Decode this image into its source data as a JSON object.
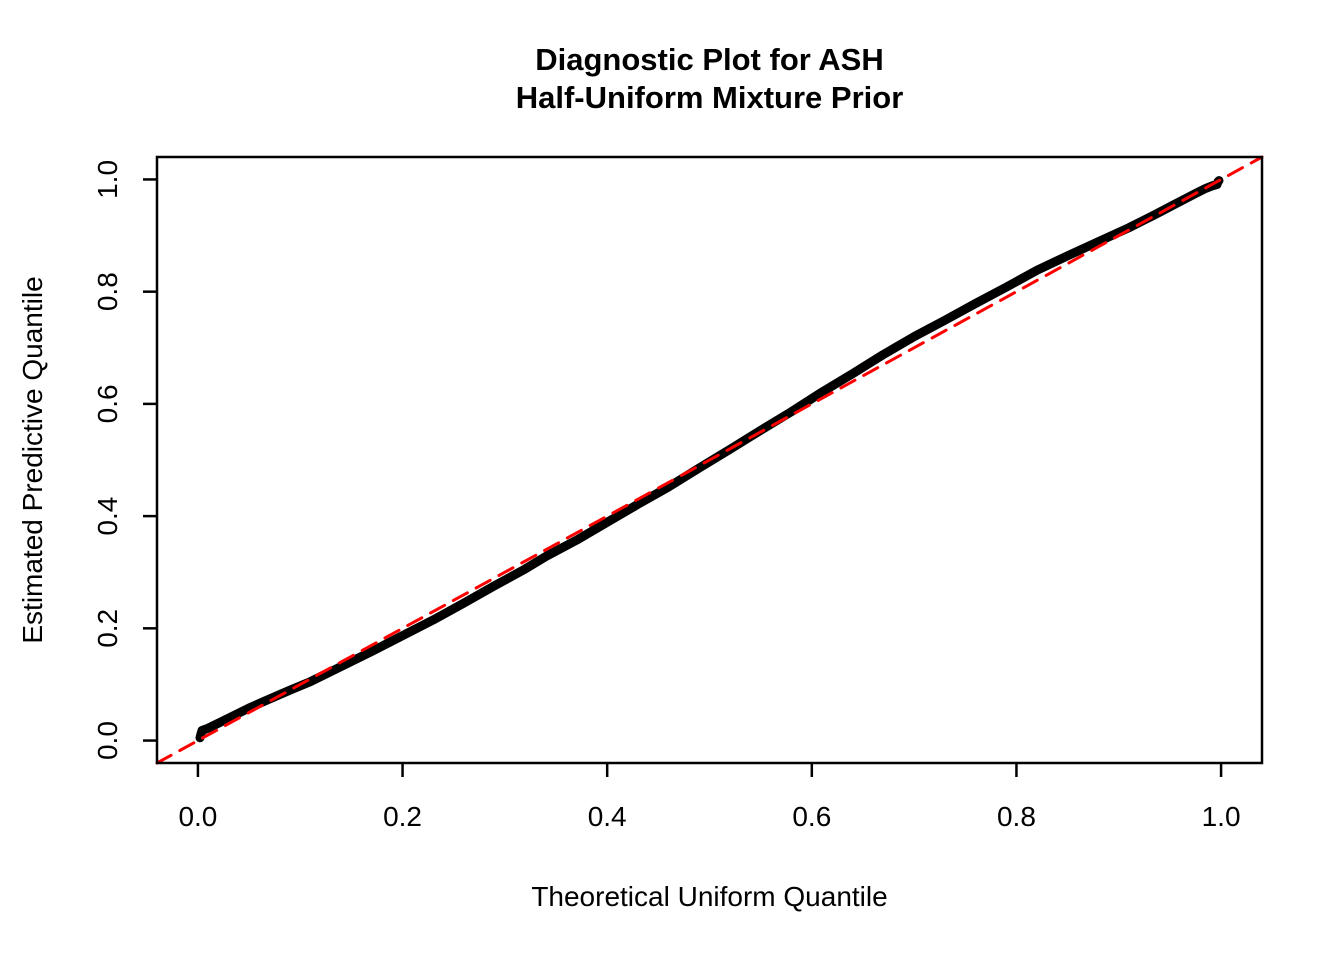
{
  "figure": {
    "title_line1": "Diagnostic Plot for ASH",
    "title_line2": "Half-Uniform Mixture Prior",
    "xlabel": "Theoretical Uniform Quantile",
    "ylabel": "Estimated Predictive Quantile"
  },
  "colors": {
    "background": "#FFFFFF",
    "text": "#000000",
    "axis": "#000000",
    "curve": "#000000",
    "reference_line": "#FF0000"
  },
  "chart_data": {
    "type": "line",
    "title": "Diagnostic Plot for ASH\nHalf-Uniform Mixture Prior",
    "xlabel": "Theoretical Uniform Quantile",
    "ylabel": "Estimated Predictive Quantile",
    "xlim": [
      -0.04,
      1.04
    ],
    "ylim": [
      -0.04,
      1.04
    ],
    "x_ticks": [
      0.0,
      0.2,
      0.4,
      0.6,
      0.8,
      1.0
    ],
    "x_tick_labels": [
      "0.0",
      "0.2",
      "0.4",
      "0.6",
      "0.8",
      "1.0"
    ],
    "y_ticks": [
      0.0,
      0.2,
      0.4,
      0.6,
      0.8,
      1.0
    ],
    "y_tick_labels": [
      "0.0",
      "0.2",
      "0.4",
      "0.6",
      "0.8",
      "1.0"
    ],
    "grid": false,
    "legend": null,
    "series": [
      {
        "name": "qq-curve",
        "label": "Estimated predictive quantile curve",
        "color": "#000000",
        "line_width": 9,
        "dash": null,
        "x": [
          0.002,
          0.003,
          0.004,
          0.01,
          0.02,
          0.03,
          0.05,
          0.07,
          0.09,
          0.11,
          0.14,
          0.17,
          0.2,
          0.23,
          0.26,
          0.29,
          0.32,
          0.34,
          0.37,
          0.4,
          0.43,
          0.46,
          0.49,
          0.52,
          0.55,
          0.58,
          0.61,
          0.64,
          0.67,
          0.7,
          0.73,
          0.76,
          0.79,
          0.82,
          0.85,
          0.88,
          0.91,
          0.935,
          0.955,
          0.975,
          0.985,
          0.992,
          0.996,
          0.997,
          0.998
        ],
        "y": [
          0.005,
          0.012,
          0.018,
          0.022,
          0.031,
          0.04,
          0.058,
          0.074,
          0.09,
          0.105,
          0.132,
          0.159,
          0.187,
          0.215,
          0.245,
          0.276,
          0.306,
          0.328,
          0.357,
          0.389,
          0.421,
          0.452,
          0.486,
          0.519,
          0.553,
          0.586,
          0.621,
          0.654,
          0.688,
          0.72,
          0.749,
          0.779,
          0.808,
          0.838,
          0.864,
          0.889,
          0.914,
          0.937,
          0.956,
          0.975,
          0.984,
          0.989,
          0.991,
          0.996,
          0.998
        ]
      },
      {
        "name": "reference-line",
        "label": "y = x reference",
        "color": "#FF0000",
        "line_width": 3,
        "dash": [
          16,
          10
        ],
        "x": [
          -0.04,
          1.04
        ],
        "y": [
          -0.04,
          1.04
        ]
      }
    ]
  }
}
